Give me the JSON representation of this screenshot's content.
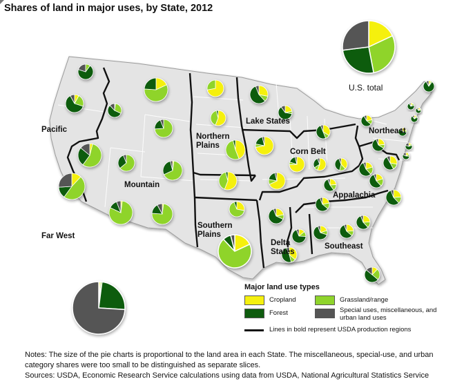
{
  "title": "Shares of land in major uses, by State, 2012",
  "colors": {
    "cropland": "#f5f00f",
    "grassland": "#8fd42c",
    "forest": "#0f5c0f",
    "special": "#555555",
    "land": "#e8e8e8",
    "border": "#111111"
  },
  "regions": [
    "Pacific",
    "Mountain",
    "Northern Plains",
    "Lake States",
    "Corn Belt",
    "Northeast",
    "Appalachia",
    "Southeast",
    "Delta States",
    "Southern Plains",
    "Far West"
  ],
  "us_total_label": "U.S. total",
  "legend": {
    "title": "Major land use types",
    "cropland": "Cropland",
    "grassland": "Grassland/range",
    "forest": "Forest",
    "special": "Special uses, miscellaneous, and urban land uses",
    "lines": "Lines in bold represent USDA production regions"
  },
  "notes": "Notes: The size of the pie charts is proportional to the land area in each State. The miscellaneous, special-use, and urban category shares were too small to be distinguished as separate slices.",
  "sources": "Sources: USDA, Economic Research Service calculations using data from USDA, National Agricultural Statistics Service"
}
